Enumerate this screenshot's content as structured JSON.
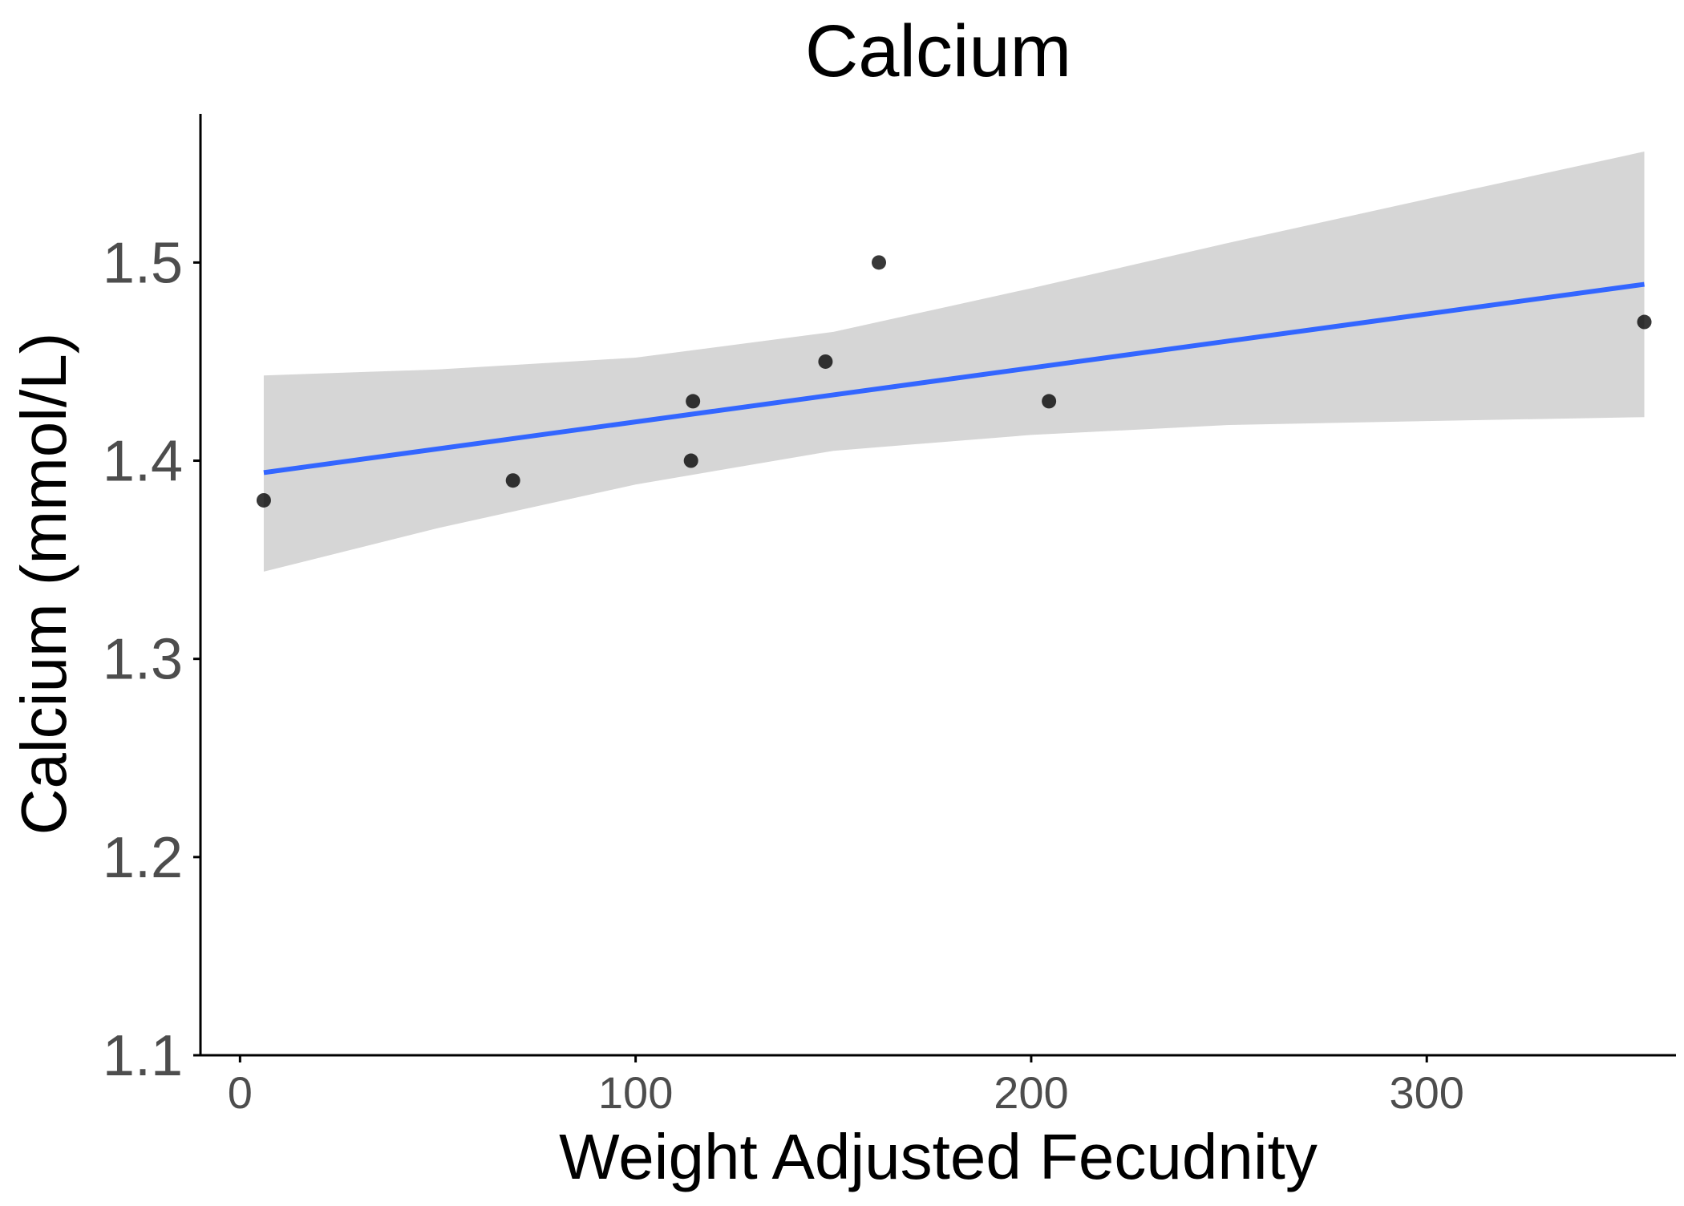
{
  "chart_data": {
    "type": "scatter",
    "title": "Calcium",
    "xlabel": "Weight Adjusted Fecudnity",
    "ylabel": "Calcium (mmol/L)",
    "xlim": [
      -10,
      363
    ],
    "ylim": [
      1.1,
      1.575
    ],
    "x_ticks": [
      0,
      100,
      200,
      300
    ],
    "x_tick_labels": [
      "0",
      "100",
      "200",
      "300"
    ],
    "y_ticks": [
      1.1,
      1.2,
      1.3,
      1.4,
      1.5
    ],
    "y_tick_labels": [
      "1.1",
      "1.2",
      "1.3",
      "1.4",
      "1.5"
    ],
    "grid": false,
    "legend": "none",
    "points": [
      {
        "x": 6,
        "y": 1.38
      },
      {
        "x": 69,
        "y": 1.39
      },
      {
        "x": 114,
        "y": 1.4
      },
      {
        "x": 114.5,
        "y": 1.43
      },
      {
        "x": 148,
        "y": 1.45
      },
      {
        "x": 161.5,
        "y": 1.5
      },
      {
        "x": 204.5,
        "y": 1.43
      },
      {
        "x": 355,
        "y": 1.47
      }
    ],
    "trend_line": {
      "method": "linear fit",
      "points": [
        {
          "x": 6,
          "y": 1.394
        },
        {
          "x": 355,
          "y": 1.489
        }
      ]
    },
    "confidence_band": {
      "x": [
        6,
        50,
        100,
        150,
        200,
        250,
        300,
        355
      ],
      "upper": [
        1.443,
        1.446,
        1.452,
        1.465,
        1.487,
        1.51,
        1.532,
        1.556
      ],
      "lower": [
        1.344,
        1.366,
        1.388,
        1.405,
        1.413,
        1.418,
        1.42,
        1.422
      ]
    },
    "colors": {
      "points": "#000000",
      "trend_line": "#3366ff",
      "confidence_band": "#d6d6d6",
      "axis": "#000000",
      "tick_labels": "#4d4d4d"
    }
  }
}
